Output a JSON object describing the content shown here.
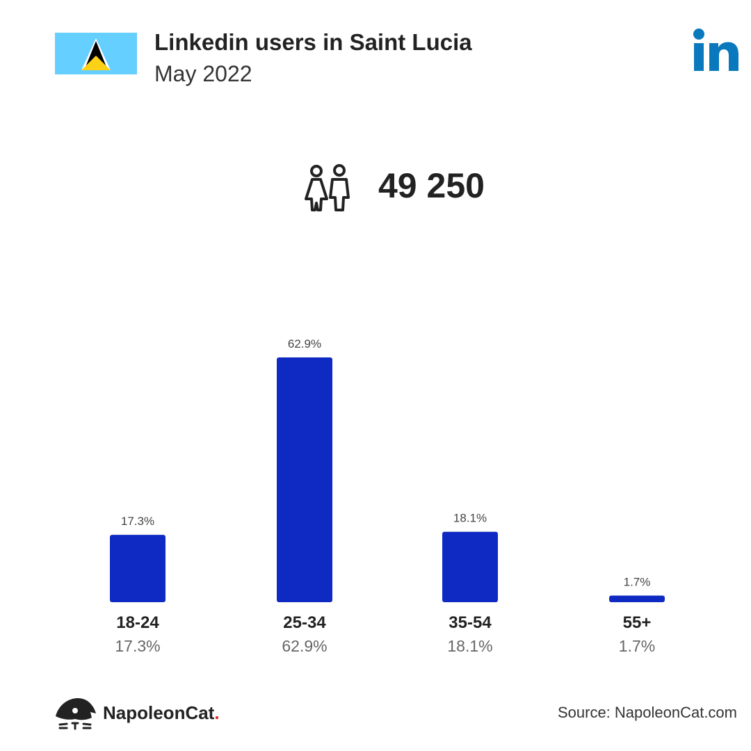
{
  "header": {
    "title": "Linkedin users in Saint Lucia",
    "subtitle": "May 2022"
  },
  "colors": {
    "bar": "#0f2ac2",
    "flag_blue": "#65cfff",
    "flag_gold": "#fcd116",
    "linkedin_blue": "#0a78bd"
  },
  "icons": {
    "flag": "saint-lucia-flag-icon",
    "brand": "linkedin-logo-icon",
    "users": "people-icon",
    "footer": "napoleoncat-logo-icon"
  },
  "total_users": "49 250",
  "chart_data": {
    "type": "bar",
    "title": "Linkedin users in Saint Lucia",
    "subtitle": "May 2022",
    "categories": [
      "18-24",
      "25-34",
      "35-54",
      "55+"
    ],
    "values": [
      17.3,
      62.9,
      18.1,
      1.7
    ],
    "value_labels": [
      "17.3%",
      "62.9%",
      "18.1%",
      "1.7%"
    ],
    "unit": "%",
    "ylim": [
      0,
      62.9
    ],
    "grid": false,
    "legend": "none"
  },
  "footer": {
    "brand_name": "NapoleonCat",
    "brand_dot": ".",
    "source": "Source: NapoleonCat.com"
  }
}
